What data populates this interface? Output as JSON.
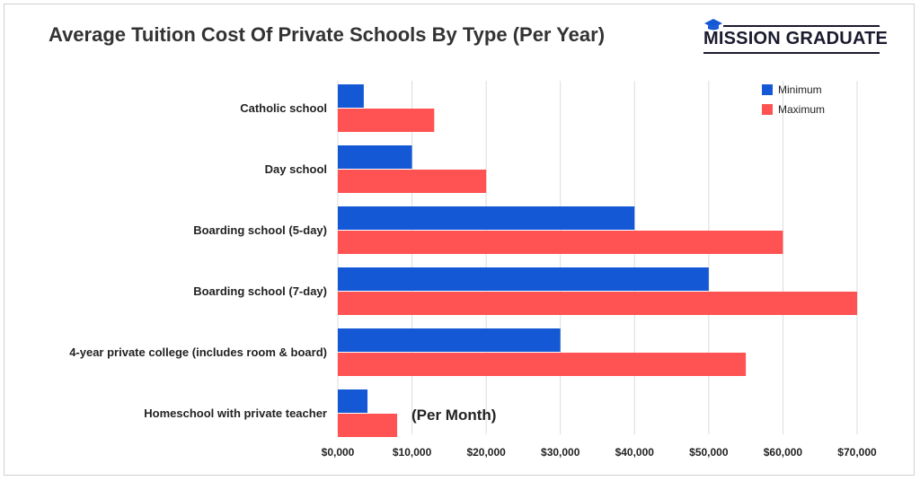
{
  "chart_data": {
    "type": "bar",
    "orientation": "horizontal",
    "title": "Average Tuition Cost Of Private Schools By Type (Per Year)",
    "categories": [
      "Catholic school",
      "Day school",
      "Boarding school (5-day)",
      "Boarding school (7-day)",
      "4-year private college (includes room & board)",
      "Homeschool with private teacher"
    ],
    "series": [
      {
        "name": "Minimum",
        "color": "#1558d6",
        "values": [
          3500,
          10000,
          40000,
          50000,
          30000,
          4000
        ]
      },
      {
        "name": "Maximum",
        "color": "#ff5252",
        "values": [
          13000,
          20000,
          60000,
          70000,
          55000,
          8000
        ]
      }
    ],
    "x_ticks": [
      "$0,000",
      "$10,000",
      "$20,000",
      "$30,000",
      "$40,000",
      "$50,000",
      "$60,000",
      "$70,000"
    ],
    "xlim": [
      0,
      70000
    ],
    "grid": "vertical",
    "legend_position": "top-right",
    "annotations": [
      {
        "text": "(Per Month)",
        "category_index": 5
      }
    ]
  },
  "brand": {
    "name": "MISSION GRADUATE",
    "logo_icon": "graduation-cap-icon",
    "color": "#1a1a2e"
  }
}
